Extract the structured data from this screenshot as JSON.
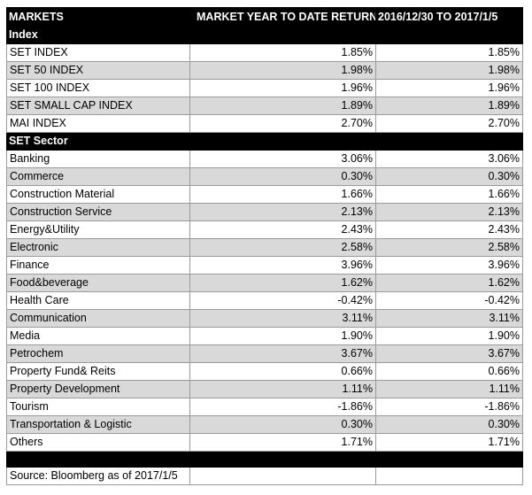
{
  "header": [
    "MARKETS",
    "MARKET YEAR TO DATE RETURN",
    "2016/12/30 TO 2017/1/5"
  ],
  "sections": [
    {
      "title": "Index",
      "rows": [
        [
          "SET INDEX",
          "1.85%",
          "1.85%"
        ],
        [
          "SET 50 INDEX",
          "1.98%",
          "1.98%"
        ],
        [
          "SET 100 INDEX",
          "1.96%",
          "1.96%"
        ],
        [
          "SET SMALL CAP INDEX",
          "1.89%",
          "1.89%"
        ],
        [
          "MAI INDEX",
          "2.70%",
          "2.70%"
        ]
      ]
    },
    {
      "title": "SET Sector",
      "rows": [
        [
          "Banking",
          "3.06%",
          "3.06%"
        ],
        [
          "Commerce",
          "0.30%",
          "0.30%"
        ],
        [
          "Construction Material",
          "1.66%",
          "1.66%"
        ],
        [
          "Construction Service",
          "2.13%",
          "2.13%"
        ],
        [
          "Energy&Utility",
          "2.43%",
          "2.43%"
        ],
        [
          "Electronic",
          "2.58%",
          "2.58%"
        ],
        [
          "Finance",
          "3.96%",
          "3.96%"
        ],
        [
          "Food&beverage",
          "1.62%",
          "1.62%"
        ],
        [
          "Health Care",
          "-0.42%",
          "-0.42%"
        ],
        [
          "Communication",
          "3.11%",
          "3.11%"
        ],
        [
          "Media",
          "1.90%",
          "1.90%"
        ],
        [
          "Petrochem",
          "3.67%",
          "3.67%"
        ],
        [
          "Property Fund& Reits",
          "0.66%",
          "0.66%"
        ],
        [
          "Property Development",
          "1.11%",
          "1.11%"
        ],
        [
          "Tourism",
          "-1.86%",
          "-1.86%"
        ],
        [
          "Transportation & Logistic",
          "0.30%",
          "0.30%"
        ],
        [
          "Others",
          "1.71%",
          "1.71%"
        ]
      ]
    }
  ],
  "footer": "Source: Bloomberg as of 2017/1/5"
}
